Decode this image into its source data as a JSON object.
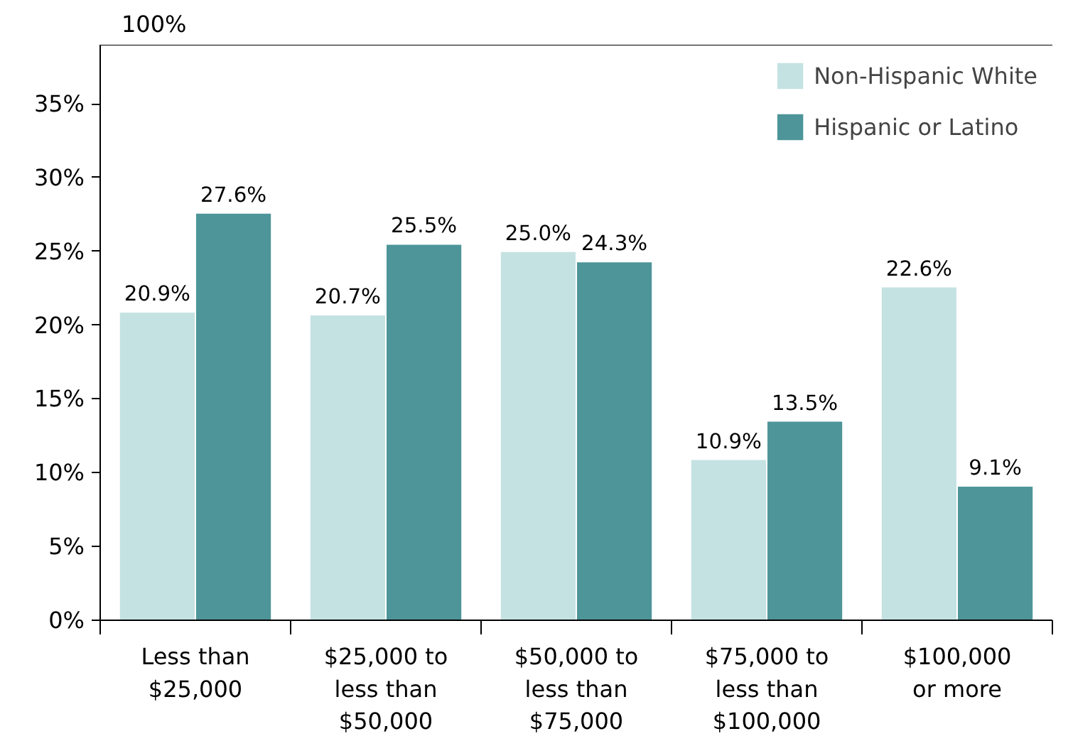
{
  "chart_data": {
    "type": "bar",
    "categories": [
      "Less than $25,000",
      "$25,000 to less than $50,000",
      "$50,000 to less than $75,000",
      "$75,000 to less than $100,000",
      "$100,000 or more"
    ],
    "series": [
      {
        "name": "Non-Hispanic White",
        "color": "#c5e2e3",
        "values": [
          20.9,
          20.7,
          25.0,
          10.9,
          22.6
        ],
        "value_labels": [
          "20.9%",
          "20.7%",
          "25.0%",
          "10.9%",
          "22.6%"
        ]
      },
      {
        "name": "Hispanic or Latino",
        "color": "#4d9599",
        "values": [
          27.6,
          25.5,
          24.3,
          13.5,
          9.1
        ],
        "value_labels": [
          "27.6%",
          "25.5%",
          "24.3%",
          "13.5%",
          "9.1%"
        ]
      }
    ],
    "ylim": [
      0,
      39
    ],
    "yticks": [
      {
        "value": 0,
        "label": "0%"
      },
      {
        "value": 5,
        "label": "5%"
      },
      {
        "value": 10,
        "label": "10%"
      },
      {
        "value": 15,
        "label": "15%"
      },
      {
        "value": 20,
        "label": "20%"
      },
      {
        "value": 25,
        "label": "25%"
      },
      {
        "value": 30,
        "label": "30%"
      },
      {
        "value": 35,
        "label": "35%"
      }
    ],
    "annotations": [
      "100%"
    ],
    "grid": false,
    "legend": "top right"
  }
}
